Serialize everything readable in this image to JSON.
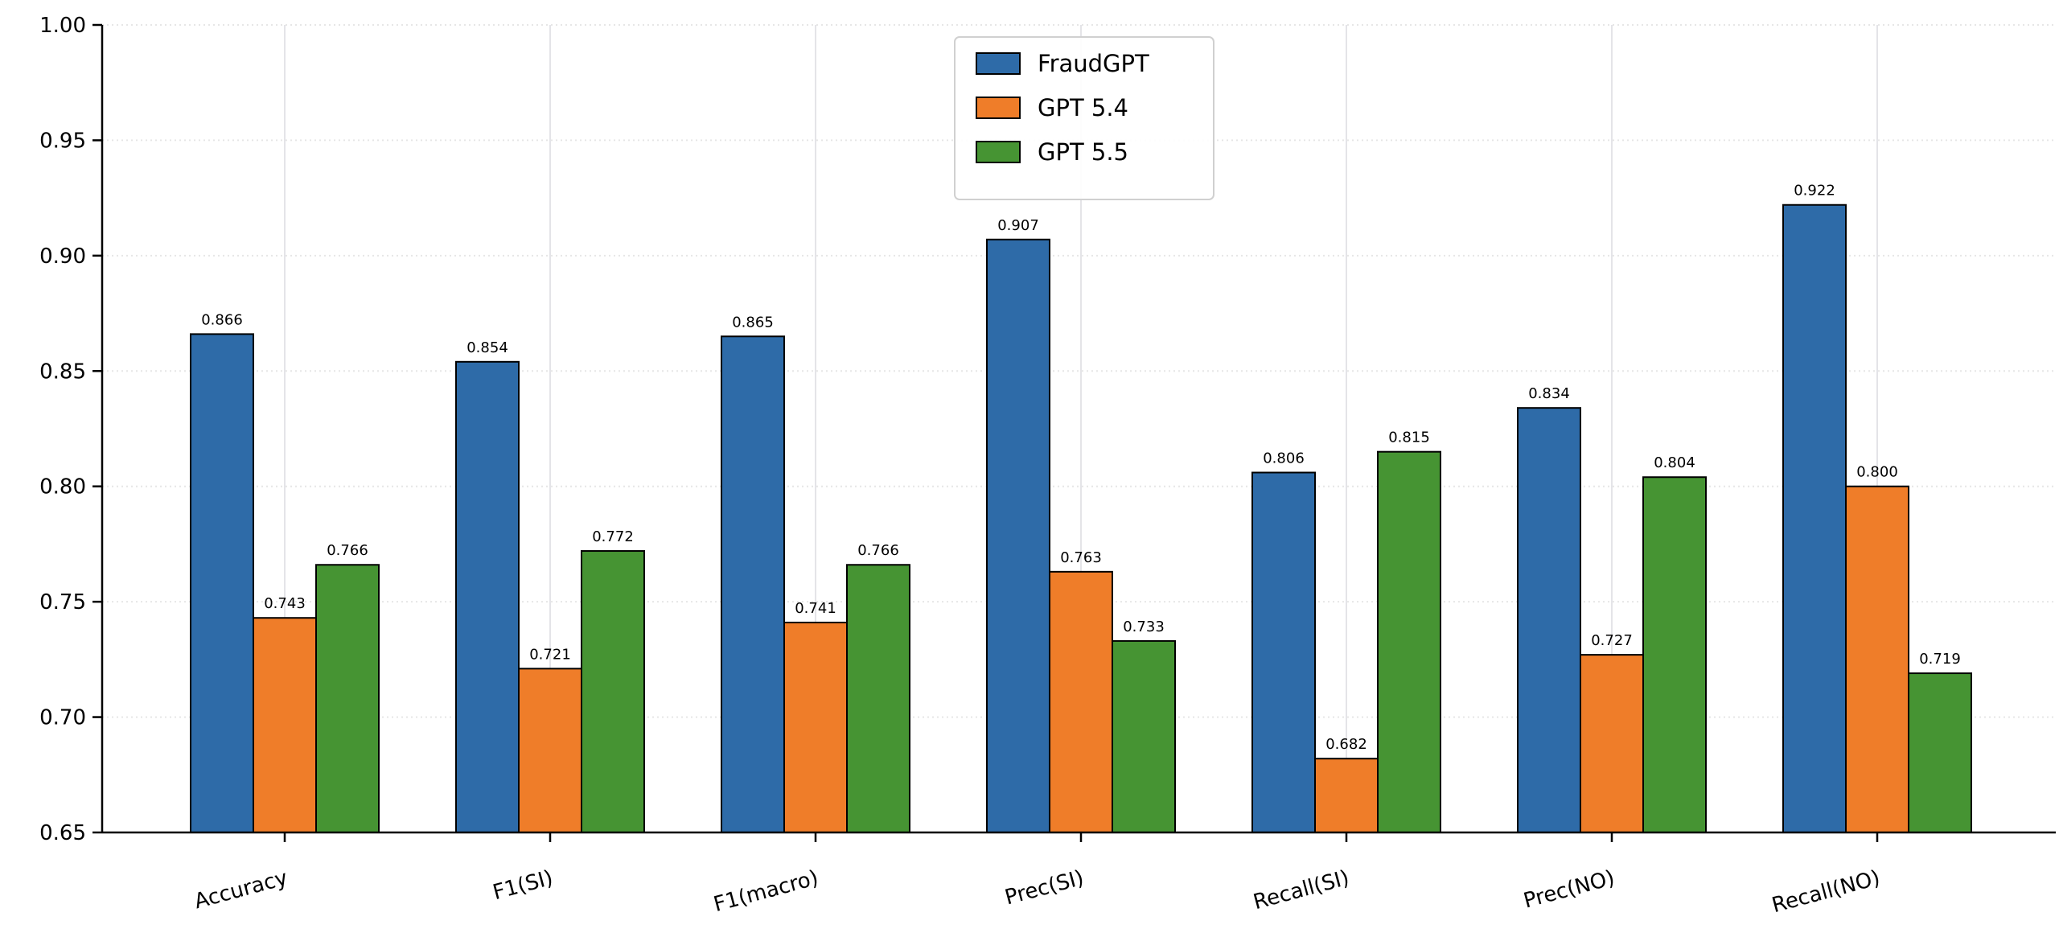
{
  "chart_data": {
    "type": "bar",
    "title": "",
    "xlabel": "",
    "ylabel": "",
    "ylim": [
      0.65,
      1.0
    ],
    "yticks": [
      "0.65",
      "0.70",
      "0.75",
      "0.80",
      "0.85",
      "0.90",
      "0.95",
      "1.00"
    ],
    "categories": [
      "Accuracy",
      "F1(SI)",
      "F1(macro)",
      "Prec(SI)",
      "Recall(SI)",
      "Prec(NO)",
      "Recall(NO)"
    ],
    "series": [
      {
        "name": "FraudGPT",
        "color": "#2e6ba8",
        "values": [
          0.866,
          0.854,
          0.865,
          0.907,
          0.806,
          0.834,
          0.922
        ]
      },
      {
        "name": "GPT 5.4",
        "color": "#ef7d29",
        "values": [
          0.743,
          0.721,
          0.741,
          0.763,
          0.682,
          0.727,
          0.8
        ]
      },
      {
        "name": "GPT 5.5",
        "color": "#469433",
        "values": [
          0.766,
          0.772,
          0.766,
          0.733,
          0.815,
          0.804,
          0.719
        ]
      }
    ],
    "grid": true,
    "legend": "top-center",
    "xtick_rotation": -15
  }
}
